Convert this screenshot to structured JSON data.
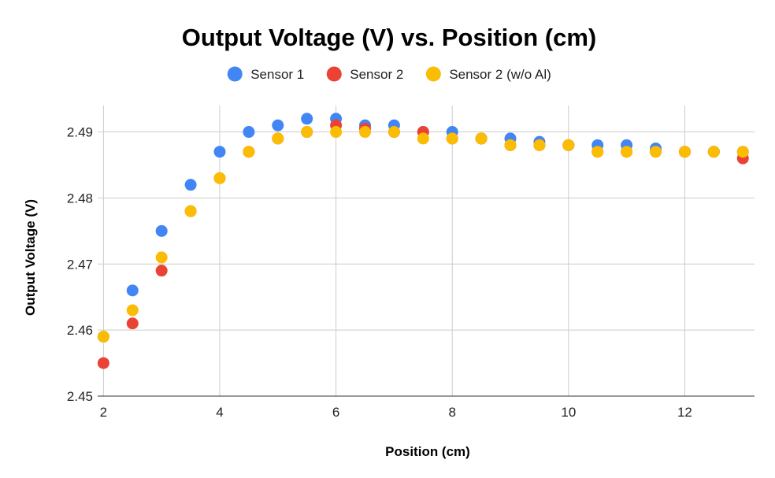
{
  "chart_data": {
    "type": "scatter",
    "title": "Output Voltage (V) vs. Position (cm)",
    "xlabel": "Position (cm)",
    "ylabel": "Output Voltage (V)",
    "xlim": [
      1.9,
      13.2
    ],
    "ylim": [
      2.45,
      2.494
    ],
    "x_ticks": [
      2,
      4,
      6,
      8,
      10,
      12
    ],
    "x_tick_labels": [
      "2",
      "4",
      "6",
      "8",
      "10",
      "12"
    ],
    "y_ticks": [
      2.45,
      2.46,
      2.47,
      2.48,
      2.49
    ],
    "y_tick_labels": [
      "2.45",
      "2.46",
      "2.47",
      "2.48",
      "2.49"
    ],
    "grid": true,
    "legend_position": "top",
    "series": [
      {
        "name": "Sensor 1",
        "color": "#4285F4",
        "points": [
          [
            2,
            2.459
          ],
          [
            2.5,
            2.466
          ],
          [
            3,
            2.475
          ],
          [
            3.5,
            2.482
          ],
          [
            4,
            2.487
          ],
          [
            4.5,
            2.49
          ],
          [
            5,
            2.491
          ],
          [
            5.5,
            2.492
          ],
          [
            6,
            2.492
          ],
          [
            6.5,
            2.491
          ],
          [
            7,
            2.491
          ],
          [
            7.5,
            2.49
          ],
          [
            8,
            2.49
          ],
          [
            8.5,
            2.489
          ],
          [
            9,
            2.489
          ],
          [
            9.5,
            2.4885
          ],
          [
            10,
            2.488
          ],
          [
            10.5,
            2.488
          ],
          [
            11,
            2.488
          ],
          [
            11.5,
            2.4875
          ],
          [
            12,
            2.487
          ],
          [
            12.5,
            2.487
          ],
          [
            13,
            2.487
          ]
        ]
      },
      {
        "name": "Sensor 2",
        "color": "#EA4335",
        "points": [
          [
            2,
            2.455
          ],
          [
            2.5,
            2.461
          ],
          [
            3,
            2.469
          ],
          [
            3.5,
            2.478
          ],
          [
            4,
            2.483
          ],
          [
            4.5,
            2.487
          ],
          [
            5,
            2.489
          ],
          [
            5.5,
            2.49
          ],
          [
            6,
            2.491
          ],
          [
            6.5,
            2.4905
          ],
          [
            7,
            2.49
          ],
          [
            7.5,
            2.49
          ],
          [
            8,
            2.489
          ],
          [
            8.5,
            2.489
          ],
          [
            9,
            2.488
          ],
          [
            9.5,
            2.488
          ],
          [
            10,
            2.488
          ],
          [
            10.5,
            2.487
          ],
          [
            11,
            2.487
          ],
          [
            11.5,
            2.487
          ],
          [
            12,
            2.487
          ],
          [
            12.5,
            2.487
          ],
          [
            13,
            2.486
          ]
        ]
      },
      {
        "name": "Sensor 2 (w/o Al)",
        "color": "#FBBC04",
        "points": [
          [
            2,
            2.459
          ],
          [
            2.5,
            2.463
          ],
          [
            3,
            2.471
          ],
          [
            3.5,
            2.478
          ],
          [
            4,
            2.483
          ],
          [
            4.5,
            2.487
          ],
          [
            5,
            2.489
          ],
          [
            5.5,
            2.49
          ],
          [
            6,
            2.49
          ],
          [
            6.5,
            2.49
          ],
          [
            7,
            2.49
          ],
          [
            7.5,
            2.489
          ],
          [
            8,
            2.489
          ],
          [
            8.5,
            2.489
          ],
          [
            9,
            2.488
          ],
          [
            9.5,
            2.488
          ],
          [
            10,
            2.488
          ],
          [
            10.5,
            2.487
          ],
          [
            11,
            2.487
          ],
          [
            11.5,
            2.487
          ],
          [
            12,
            2.487
          ],
          [
            12.5,
            2.487
          ],
          [
            13,
            2.487
          ]
        ]
      }
    ]
  }
}
